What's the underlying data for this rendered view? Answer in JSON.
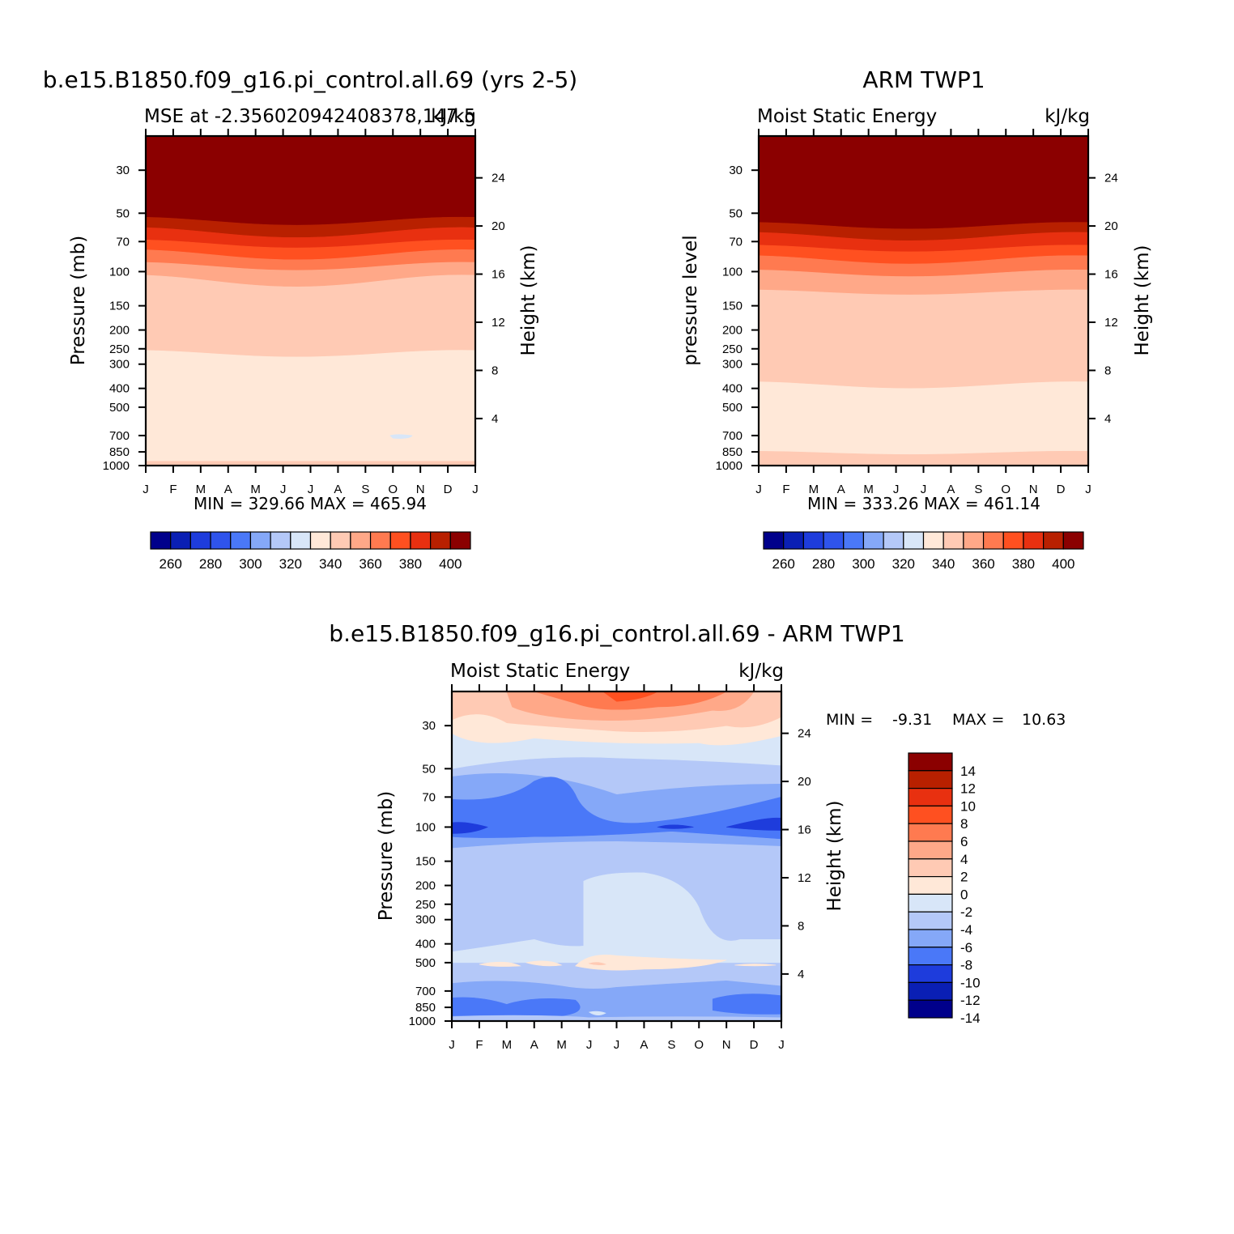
{
  "colors": {
    "mse": [
      "#00008b",
      "#0a1fb4",
      "#1e3cdc",
      "#2f54ec",
      "#4a78f8",
      "#85a8f8",
      "#b4c8f8",
      "#d8e6f8",
      "#ffe8d8",
      "#ffcab4",
      "#ffa888",
      "#ff7a50",
      "#ff5020",
      "#e83010",
      "#b82000",
      "#8b0000"
    ],
    "diff": [
      "#00008b",
      "#0a1fb4",
      "#1e3cdc",
      "#4a78f8",
      "#85a8f8",
      "#b4c8f8",
      "#d8e6f8",
      "#ffe8d8",
      "#ffcab4",
      "#ffa888",
      "#ff7a50",
      "#ff5020",
      "#e83010",
      "#b82000",
      "#8b0000"
    ]
  },
  "chart_data": [
    {
      "type": "heatmap",
      "title": "b.e15.B1850.f09_g16.pi_control.all.69 (yrs 2-5)",
      "left_string": "MSE at -2.356020942408378,147.5",
      "right_string": "kJ/kg",
      "ylabel": "Pressure (mb)",
      "ylabel_right": "Height (km)",
      "x_ticks": [
        "J",
        "F",
        "M",
        "A",
        "M",
        "J",
        "J",
        "A",
        "S",
        "O",
        "N",
        "D",
        "J"
      ],
      "y_ticks": [
        "30",
        "50",
        "70",
        "100",
        "150",
        "200",
        "250",
        "300",
        "400",
        "500",
        "700",
        "850",
        "1000"
      ],
      "y_right_ticks": [
        "24",
        "20",
        "16",
        "12",
        "8",
        "4"
      ],
      "min_max": "MIN = 329.66 MAX = 465.94",
      "colorbar_labels": [
        "260",
        "280",
        "300",
        "320",
        "340",
        "360",
        "380",
        "400"
      ],
      "band_boundaries_mb": [
        {
          "level_mb": 55,
          "value": 400
        },
        {
          "level_mb": 62,
          "value": 390
        },
        {
          "level_mb": 70,
          "value": 380
        },
        {
          "level_mb": 80,
          "value": 370
        },
        {
          "level_mb": 92,
          "value": 360
        },
        {
          "level_mb": 110,
          "value": 350
        },
        {
          "level_mb": 265,
          "value": 340
        },
        {
          "level_mb": 950,
          "value": 330
        }
      ]
    },
    {
      "type": "heatmap",
      "title": "ARM TWP1",
      "left_string": "Moist Static Energy",
      "right_string": "kJ/kg",
      "ylabel": "pressure level",
      "ylabel_right": "Height (km)",
      "x_ticks": [
        "J",
        "F",
        "M",
        "A",
        "M",
        "J",
        "J",
        "A",
        "S",
        "O",
        "N",
        "D",
        "J"
      ],
      "y_ticks": [
        "30",
        "50",
        "70",
        "100",
        "150",
        "200",
        "250",
        "300",
        "400",
        "500",
        "700",
        "850",
        "1000"
      ],
      "y_right_ticks": [
        "24",
        "20",
        "16",
        "12",
        "8",
        "4"
      ],
      "min_max": "MIN = 333.26 MAX = 461.14",
      "colorbar_labels": [
        "260",
        "280",
        "300",
        "320",
        "340",
        "360",
        "380",
        "400"
      ]
    },
    {
      "type": "heatmap",
      "title": "b.e15.B1850.f09_g16.pi_control.all.69 - ARM TWP1",
      "left_string": "Moist Static Energy",
      "right_string": "kJ/kg",
      "ylabel": "Pressure (mb)",
      "ylabel_right": "Height (km)",
      "x_ticks": [
        "J",
        "F",
        "M",
        "A",
        "M",
        "J",
        "J",
        "A",
        "S",
        "O",
        "N",
        "D",
        "J"
      ],
      "y_ticks": [
        "30",
        "50",
        "70",
        "100",
        "150",
        "200",
        "250",
        "300",
        "400",
        "500",
        "700",
        "850",
        "1000"
      ],
      "y_right_ticks": [
        "24",
        "20",
        "16",
        "12",
        "8",
        "4"
      ],
      "min_label": "MIN =",
      "min_value": "-9.31",
      "max_label": "MAX =",
      "max_value": "10.63",
      "colorbar_labels": [
        "14",
        "12",
        "10",
        "8",
        "6",
        "4",
        "2",
        "0",
        "-2",
        "-4",
        "-6",
        "-8",
        "-10",
        "-12",
        "-14"
      ]
    }
  ]
}
